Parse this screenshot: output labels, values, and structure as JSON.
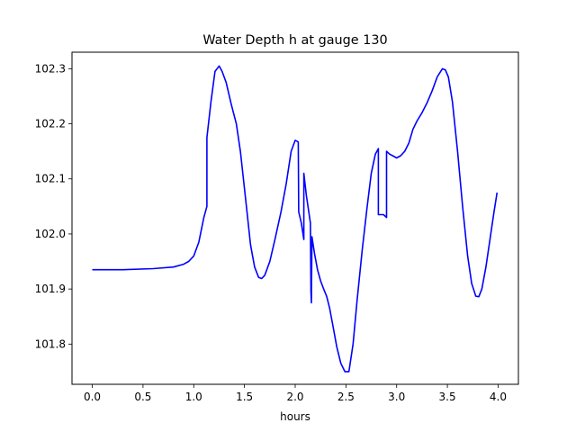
{
  "chart_data": {
    "type": "line",
    "title": "Water Depth h at gauge 130",
    "xlabel": "hours",
    "ylabel": "",
    "xlim": [
      -0.2,
      4.2
    ],
    "ylim": [
      101.727,
      102.33
    ],
    "xticks": [
      0.0,
      0.5,
      1.0,
      1.5,
      2.0,
      2.5,
      3.0,
      3.5,
      4.0
    ],
    "xtick_labels": [
      "0.0",
      "0.5",
      "1.0",
      "1.5",
      "2.0",
      "2.5",
      "3.0",
      "3.5",
      "4.0"
    ],
    "yticks": [
      101.8,
      101.9,
      102.0,
      102.1,
      102.2,
      102.3
    ],
    "ytick_labels": [
      "101.8",
      "101.9",
      "102.0",
      "102.1",
      "102.2",
      "102.3"
    ],
    "grid": false,
    "series": [
      {
        "color": "#0000ff",
        "points": [
          [
            0.0,
            101.935
          ],
          [
            0.3,
            101.935
          ],
          [
            0.6,
            101.937
          ],
          [
            0.8,
            101.94
          ],
          [
            0.9,
            101.945
          ],
          [
            0.95,
            101.95
          ],
          [
            1.0,
            101.96
          ],
          [
            1.05,
            101.985
          ],
          [
            1.1,
            102.03
          ],
          [
            1.13,
            102.05
          ],
          [
            1.13,
            102.175
          ],
          [
            1.17,
            102.24
          ],
          [
            1.21,
            102.295
          ],
          [
            1.25,
            102.305
          ],
          [
            1.28,
            102.295
          ],
          [
            1.32,
            102.275
          ],
          [
            1.37,
            102.235
          ],
          [
            1.42,
            102.2
          ],
          [
            1.46,
            102.15
          ],
          [
            1.51,
            102.065
          ],
          [
            1.56,
            101.98
          ],
          [
            1.6,
            101.94
          ],
          [
            1.64,
            101.921
          ],
          [
            1.67,
            101.919
          ],
          [
            1.7,
            101.925
          ],
          [
            1.75,
            101.95
          ],
          [
            1.8,
            101.99
          ],
          [
            1.86,
            102.04
          ],
          [
            1.91,
            102.09
          ],
          [
            1.96,
            102.15
          ],
          [
            2.0,
            102.17
          ],
          [
            2.03,
            102.167
          ],
          [
            2.035,
            102.04
          ],
          [
            2.06,
            102.02
          ],
          [
            2.085,
            101.99
          ],
          [
            2.085,
            102.11
          ],
          [
            2.11,
            102.07
          ],
          [
            2.15,
            102.02
          ],
          [
            2.155,
            101.895
          ],
          [
            2.16,
            101.875
          ],
          [
            2.165,
            101.995
          ],
          [
            2.19,
            101.965
          ],
          [
            2.22,
            101.935
          ],
          [
            2.25,
            101.915
          ],
          [
            2.28,
            101.9
          ],
          [
            2.31,
            101.887
          ],
          [
            2.34,
            101.865
          ],
          [
            2.37,
            101.835
          ],
          [
            2.41,
            101.795
          ],
          [
            2.45,
            101.765
          ],
          [
            2.49,
            101.75
          ],
          [
            2.53,
            101.75
          ],
          [
            2.57,
            101.8
          ],
          [
            2.61,
            101.88
          ],
          [
            2.66,
            101.97
          ],
          [
            2.71,
            102.05
          ],
          [
            2.75,
            102.11
          ],
          [
            2.79,
            102.145
          ],
          [
            2.82,
            102.155
          ],
          [
            2.82,
            102.035
          ],
          [
            2.85,
            102.035
          ],
          [
            2.87,
            102.035
          ],
          [
            2.9,
            102.03
          ],
          [
            2.9,
            102.15
          ],
          [
            2.93,
            102.145
          ],
          [
            2.96,
            102.142
          ],
          [
            3.0,
            102.138
          ],
          [
            3.04,
            102.142
          ],
          [
            3.08,
            102.15
          ],
          [
            3.12,
            102.165
          ],
          [
            3.16,
            102.19
          ],
          [
            3.2,
            102.205
          ],
          [
            3.25,
            102.22
          ],
          [
            3.3,
            102.238
          ],
          [
            3.35,
            102.26
          ],
          [
            3.4,
            102.285
          ],
          [
            3.45,
            102.3
          ],
          [
            3.48,
            102.298
          ],
          [
            3.51,
            102.285
          ],
          [
            3.55,
            102.24
          ],
          [
            3.6,
            102.15
          ],
          [
            3.65,
            102.05
          ],
          [
            3.7,
            101.96
          ],
          [
            3.74,
            101.91
          ],
          [
            3.78,
            101.887
          ],
          [
            3.81,
            101.886
          ],
          [
            3.84,
            101.9
          ],
          [
            3.88,
            101.94
          ],
          [
            3.92,
            101.99
          ],
          [
            3.96,
            102.04
          ],
          [
            3.99,
            102.075
          ]
        ]
      }
    ]
  }
}
